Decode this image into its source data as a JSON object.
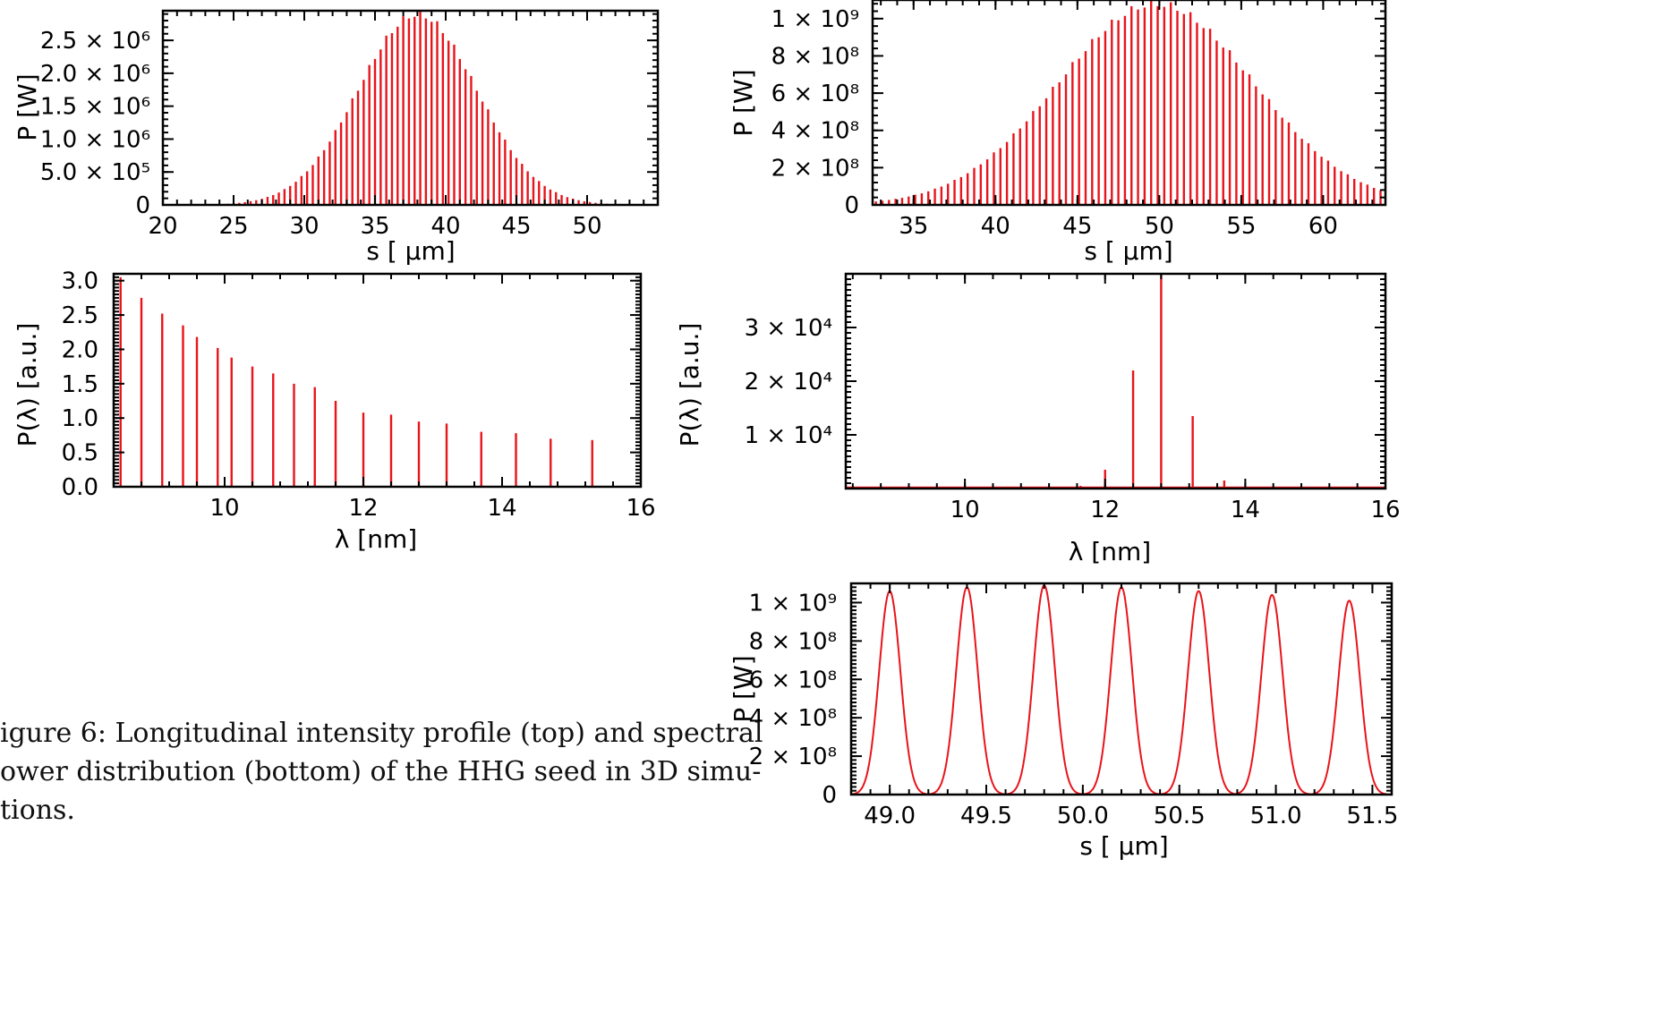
{
  "caption": "igure 6:  Longitudinal intensity profile (top) and spectral\nower distribution (bottom) of the HHG seed in 3D simu-\ntions.",
  "colors": {
    "trace": "#e8141b",
    "axes": "#000000"
  },
  "chart_data": [
    {
      "id": "top-left",
      "type": "bar",
      "xlabel": "s [ μm]",
      "ylabel": "P [W]",
      "xlim": [
        20,
        55
      ],
      "ylim": [
        0,
        2950000.0
      ],
      "xticks": [
        "20",
        "25",
        "30",
        "35",
        "40",
        "45",
        "50"
      ],
      "xtick_values": [
        20,
        25,
        30,
        35,
        40,
        45,
        50
      ],
      "yticks": [
        "0",
        "5.0 × 10⁵",
        "1.0 × 10⁶",
        "1.5 × 10⁶",
        "2.0 × 10⁶",
        "2.5 × 10⁶"
      ],
      "ytick_values": [
        0,
        500000,
        1000000,
        1500000,
        2000000,
        2500000
      ],
      "peak_center": 38.0,
      "peak_height": 2950000.0,
      "peak_sigma": 4.2,
      "peak_spacing": 0.4
    },
    {
      "id": "top-right",
      "type": "bar",
      "xlabel": "s [ μm]",
      "ylabel": "P [W]",
      "xlim": [
        32.5,
        63.8
      ],
      "ylim": [
        0,
        1100000000.0
      ],
      "xticks": [
        "35",
        "40",
        "45",
        "50",
        "55",
        "60"
      ],
      "xtick_values": [
        35,
        40,
        45,
        50,
        55,
        60
      ],
      "yticks": [
        "0",
        "2 × 10⁸",
        "4 × 10⁸",
        "6 × 10⁸",
        "8 × 10⁸",
        "1 × 10⁹"
      ],
      "ytick_values": [
        0,
        200000000,
        400000000,
        600000000,
        800000000,
        1000000000
      ],
      "peak_center": 49.8,
      "peak_height": 1100000000.0,
      "peak_sigma": 6.0,
      "peak_spacing": 0.4
    },
    {
      "id": "bottom-left",
      "type": "bar",
      "xlabel": "λ [nm]",
      "ylabel": "P(λ) [a.u.]",
      "xlim": [
        8.4,
        16
      ],
      "ylim": [
        0,
        3.1
      ],
      "xticks": [
        "10",
        "12",
        "14",
        "16"
      ],
      "xtick_values": [
        10,
        12,
        14,
        16
      ],
      "yticks": [
        "0.0",
        "0.5",
        "1.0",
        "1.5",
        "2.0",
        "2.5",
        "3.0"
      ],
      "ytick_values": [
        0,
        0.5,
        1.0,
        1.5,
        2.0,
        2.5,
        3.0
      ],
      "x": [
        8.5,
        8.8,
        9.1,
        9.4,
        9.6,
        9.9,
        10.1,
        10.4,
        10.7,
        11.0,
        11.3,
        11.6,
        12.0,
        12.4,
        12.8,
        13.2,
        13.7,
        14.2,
        14.7,
        15.3
      ],
      "values": [
        3.05,
        2.75,
        2.52,
        2.35,
        2.18,
        2.02,
        1.88,
        1.75,
        1.65,
        1.5,
        1.45,
        1.25,
        1.08,
        1.05,
        0.95,
        0.92,
        0.8,
        0.78,
        0.7,
        0.68
      ]
    },
    {
      "id": "bottom-right",
      "type": "bar",
      "xlabel": "λ [nm]",
      "ylabel": "P(λ) [a.u.]",
      "xlim": [
        8.3,
        16
      ],
      "ylim": [
        0,
        40000
      ],
      "xticks": [
        "10",
        "12",
        "14",
        "16"
      ],
      "xtick_values": [
        10,
        12,
        14,
        16
      ],
      "yticks": [
        "1 × 10⁴",
        "2 × 10⁴",
        "3 × 10⁴"
      ],
      "ytick_values": [
        10000,
        20000,
        30000
      ],
      "x": [
        11.65,
        12.0,
        12.4,
        12.8,
        13.25,
        13.7
      ],
      "values": [
        500,
        3500,
        22000,
        40000,
        13500,
        1500
      ]
    },
    {
      "id": "zoom",
      "type": "line",
      "xlabel": "s [ μm]",
      "ylabel": "P [W]",
      "xlim": [
        48.8,
        51.6
      ],
      "ylim": [
        0,
        1100000000.0
      ],
      "xticks": [
        "49.0",
        "49.5",
        "50.0",
        "50.5",
        "51.0",
        "51.5"
      ],
      "xtick_values": [
        49.0,
        49.5,
        50.0,
        50.5,
        51.0,
        51.5
      ],
      "yticks": [
        "0",
        "2 × 10⁸",
        "4 × 10⁸",
        "6 × 10⁸",
        "8 × 10⁸",
        "1 × 10⁹"
      ],
      "ytick_values": [
        0,
        200000000,
        400000000,
        600000000,
        800000000,
        1000000000
      ],
      "x": [
        49.0,
        49.4,
        49.8,
        50.2,
        50.6,
        50.98,
        51.38
      ],
      "values": [
        1060000000.0,
        1080000000.0,
        1090000000.0,
        1080000000.0,
        1060000000.0,
        1040000000.0,
        1010000000.0
      ],
      "peak_width": 0.055
    }
  ]
}
